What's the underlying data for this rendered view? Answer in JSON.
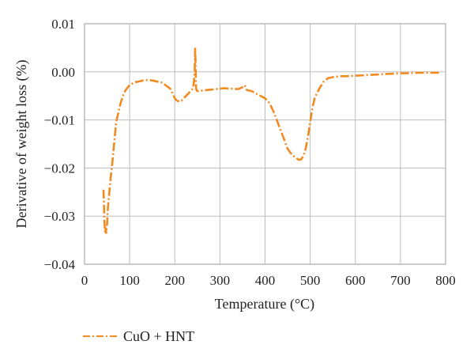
{
  "chart_data": {
    "type": "line",
    "title": "",
    "xlabel": "Temperature (°C)",
    "ylabel": "Derivative of weight loss (%)",
    "xlim": [
      0,
      800
    ],
    "ylim": [
      -0.04,
      0.01
    ],
    "x_ticks": [
      0,
      100,
      200,
      300,
      400,
      500,
      600,
      700,
      800
    ],
    "x_tick_labels": [
      "0",
      "100",
      "200",
      "300",
      "400",
      "500",
      "600",
      "700",
      "800"
    ],
    "y_ticks": [
      0.01,
      0.0,
      -0.01,
      -0.02,
      -0.03,
      -0.04
    ],
    "y_tick_labels": [
      "0.01",
      "0.00",
      "−0.01",
      "−0.02",
      "−0.03",
      "−0.04"
    ],
    "grid": true,
    "legend": "bottom-left",
    "series": [
      {
        "name": "CuO + HNT",
        "color": "#F28A22",
        "line_style": "dash-dot",
        "x": [
          42,
          43,
          44,
          45,
          46,
          47,
          48,
          50,
          52,
          55,
          58,
          62,
          66,
          70,
          75,
          80,
          85,
          90,
          95,
          100,
          110,
          120,
          130,
          140,
          150,
          160,
          170,
          180,
          190,
          200,
          205,
          210,
          215,
          220,
          225,
          230,
          235,
          240,
          242,
          244,
          245,
          246,
          247,
          248,
          250,
          255,
          260,
          270,
          280,
          290,
          300,
          310,
          320,
          330,
          340,
          350,
          355,
          360,
          370,
          380,
          390,
          400,
          410,
          420,
          430,
          440,
          450,
          460,
          470,
          475,
          480,
          485,
          490,
          495,
          500,
          505,
          510,
          520,
          530,
          540,
          550,
          560,
          570,
          580,
          600,
          620,
          640,
          660,
          680,
          700,
          720,
          740,
          760,
          780,
          790
        ],
        "y": [
          -0.0245,
          -0.0275,
          -0.031,
          -0.0325,
          -0.0335,
          -0.0325,
          -0.0335,
          -0.0315,
          -0.028,
          -0.025,
          -0.022,
          -0.0185,
          -0.0145,
          -0.0105,
          -0.0085,
          -0.0065,
          -0.005,
          -0.004,
          -0.0033,
          -0.0028,
          -0.0022,
          -0.002,
          -0.0018,
          -0.0017,
          -0.0018,
          -0.002,
          -0.0022,
          -0.0028,
          -0.0035,
          -0.0055,
          -0.006,
          -0.0062,
          -0.006,
          -0.0055,
          -0.005,
          -0.0045,
          -0.004,
          -0.0035,
          -0.0025,
          0.0,
          0.005,
          0.002,
          -0.003,
          -0.0038,
          -0.004,
          -0.004,
          -0.0039,
          -0.0038,
          -0.0037,
          -0.0036,
          -0.0035,
          -0.0034,
          -0.0035,
          -0.0035,
          -0.0036,
          -0.0032,
          -0.0028,
          -0.0038,
          -0.004,
          -0.0045,
          -0.005,
          -0.0055,
          -0.0065,
          -0.0085,
          -0.011,
          -0.0135,
          -0.016,
          -0.0173,
          -0.018,
          -0.0183,
          -0.0182,
          -0.0175,
          -0.016,
          -0.0135,
          -0.0105,
          -0.0075,
          -0.0055,
          -0.0035,
          -0.002,
          -0.0013,
          -0.0011,
          -0.001,
          -0.0009,
          -0.0009,
          -0.0008,
          -0.0007,
          -0.0006,
          -0.0005,
          -0.0004,
          -0.0003,
          -0.0003,
          -0.0002,
          -0.0002,
          -0.0002,
          -0.0002
        ]
      }
    ]
  }
}
